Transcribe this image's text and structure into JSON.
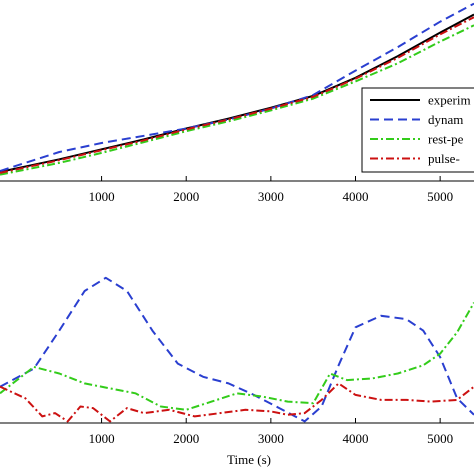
{
  "chart_data": [
    {
      "type": "line",
      "xlabel": "",
      "xlim": [
        -200,
        5400
      ],
      "ylim": [
        0,
        1
      ],
      "x_ticks": [
        1000,
        2000,
        3000,
        4000,
        5000
      ],
      "x_tick_labels": [
        "1000",
        "2000",
        "3000",
        "4000",
        "5000"
      ],
      "grid": false,
      "legend_position": "right",
      "series": [
        {
          "name": "experim",
          "color": "#000000",
          "dash": "solid",
          "x": [
            -200,
            500,
            1000,
            1500,
            2000,
            2500,
            3000,
            3500,
            4000,
            4500,
            5000,
            5400
          ],
          "y": [
            0.05,
            0.12,
            0.175,
            0.23,
            0.29,
            0.345,
            0.405,
            0.47,
            0.57,
            0.69,
            0.82,
            0.92
          ]
        },
        {
          "name": "dynam",
          "color": "#2a3fd0",
          "dash": "dashed",
          "x": [
            -200,
            500,
            1000,
            1500,
            2000,
            2500,
            3000,
            3500,
            4000,
            4500,
            5000,
            5400
          ],
          "y": [
            0.055,
            0.16,
            0.21,
            0.25,
            0.29,
            0.34,
            0.4,
            0.475,
            0.61,
            0.74,
            0.88,
            0.98
          ]
        },
        {
          "name": "rest-pe",
          "color": "#33cc1a",
          "dash": "dashdot",
          "x": [
            -200,
            500,
            1000,
            1500,
            2000,
            2500,
            3000,
            3500,
            4000,
            4500,
            5000,
            5400
          ],
          "y": [
            0.035,
            0.1,
            0.155,
            0.215,
            0.275,
            0.33,
            0.39,
            0.455,
            0.55,
            0.65,
            0.77,
            0.86
          ]
        },
        {
          "name": "pulse-",
          "color": "#cc1111",
          "dash": "dashdot",
          "x": [
            -200,
            500,
            1000,
            1500,
            2000,
            2500,
            3000,
            3500,
            4000,
            4500,
            5000,
            5400
          ],
          "y": [
            0.045,
            0.115,
            0.17,
            0.225,
            0.285,
            0.34,
            0.4,
            0.465,
            0.565,
            0.68,
            0.81,
            0.905
          ]
        }
      ],
      "legend": [
        "experim",
        "dynam",
        "rest-pe",
        "pulse-"
      ]
    },
    {
      "type": "line",
      "xlabel": "Time (s)",
      "xlim": [
        -200,
        5400
      ],
      "ylim": [
        0,
        1
      ],
      "x_ticks": [
        1000,
        2000,
        3000,
        4000,
        5000
      ],
      "x_tick_labels": [
        "1000",
        "2000",
        "3000",
        "4000",
        "5000"
      ],
      "grid": false,
      "series": [
        {
          "color": "#2a3fd0",
          "dash": "dashed",
          "x": [
            -200,
            200,
            500,
            800,
            1050,
            1300,
            1600,
            1900,
            2200,
            2500,
            2800,
            3100,
            3400,
            3600,
            3800,
            4000,
            4300,
            4600,
            4800,
            5000,
            5200,
            5400
          ],
          "y": [
            0.22,
            0.33,
            0.56,
            0.8,
            0.88,
            0.8,
            0.56,
            0.36,
            0.28,
            0.24,
            0.17,
            0.09,
            0.01,
            0.1,
            0.35,
            0.58,
            0.65,
            0.63,
            0.56,
            0.4,
            0.15,
            0.05
          ]
        },
        {
          "color": "#33cc1a",
          "dash": "dashdot",
          "x": [
            -200,
            200,
            500,
            800,
            1100,
            1400,
            1700,
            2000,
            2300,
            2600,
            2900,
            3200,
            3500,
            3700,
            3900,
            4200,
            4500,
            4800,
            5000,
            5200,
            5400
          ],
          "y": [
            0.18,
            0.34,
            0.3,
            0.24,
            0.21,
            0.18,
            0.1,
            0.08,
            0.13,
            0.18,
            0.16,
            0.13,
            0.12,
            0.3,
            0.26,
            0.27,
            0.3,
            0.35,
            0.42,
            0.55,
            0.73
          ]
        },
        {
          "color": "#cc1111",
          "dash": "dashdot",
          "x": [
            -200,
            100,
            300,
            450,
            600,
            750,
            900,
            1000,
            1100,
            1300,
            1500,
            1800,
            2100,
            2400,
            2700,
            3000,
            3200,
            3400,
            3600,
            3800,
            4000,
            4300,
            4600,
            4900,
            5200,
            5400
          ],
          "y": [
            0.22,
            0.15,
            0.04,
            0.06,
            0.01,
            0.1,
            0.09,
            0.05,
            0.01,
            0.09,
            0.06,
            0.08,
            0.04,
            0.06,
            0.08,
            0.07,
            0.05,
            0.06,
            0.14,
            0.24,
            0.17,
            0.14,
            0.14,
            0.13,
            0.14,
            0.22
          ]
        }
      ]
    }
  ]
}
